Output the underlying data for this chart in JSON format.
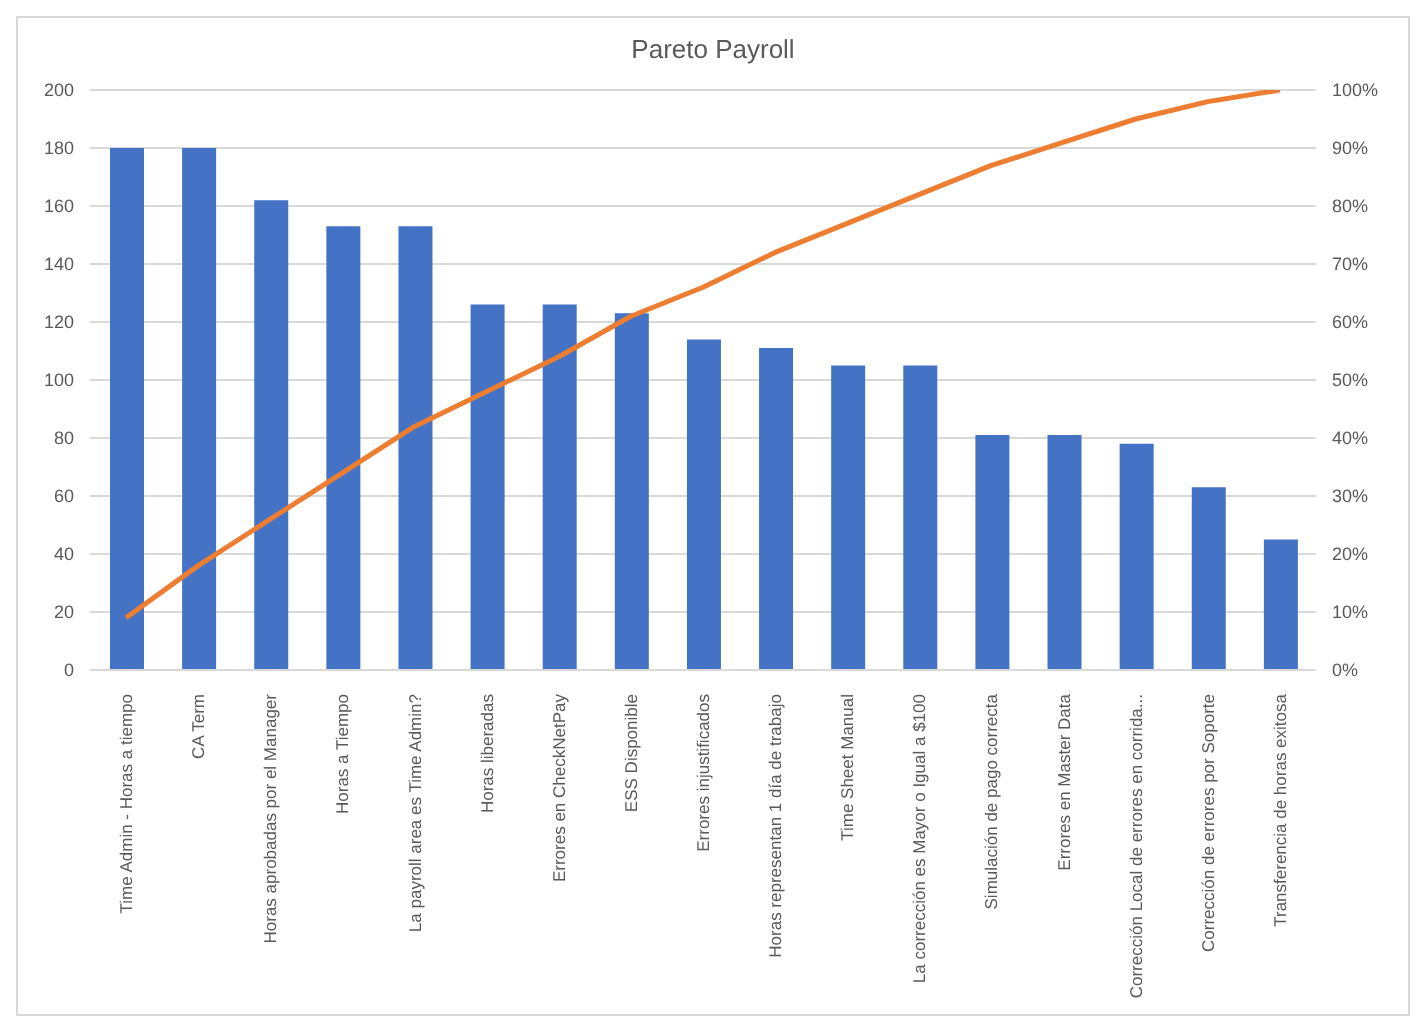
{
  "chart_data": {
    "type": "bar",
    "title": "Pareto Payroll",
    "categories": [
      "Time Admin - Horas a tiempo",
      "CA Term",
      "Horas aprobadas por el Manager",
      "Horas a Tiempo",
      "La payroll area es Time Admin?",
      "Horas liberadas",
      "Errores en CheckNetPay",
      "ESS Disponible",
      "Errores injustificados",
      "Horas representan 1 día de trabajo",
      "Time Sheet Manual",
      "La corrección es Mayor o Igual a $100",
      "Simulación de pago correcta",
      "Errores en Master Data",
      "Corrección Local de errores en corrida...",
      "Corrección de errores por Soporte",
      "Transferencia de horas exitosa"
    ],
    "series": [
      {
        "color": "#4472c4",
        "values": [
          180,
          180,
          162,
          153,
          153,
          126,
          126,
          123,
          114,
          111,
          105,
          105,
          81,
          81,
          78,
          63,
          45
        ]
      },
      {
        "type": "line",
        "axis": "y2",
        "color": "#ed7d31",
        "values": [
          9,
          18,
          26,
          34,
          42,
          48,
          54,
          61,
          66,
          72,
          77,
          82,
          87,
          91,
          95,
          98,
          100
        ]
      }
    ],
    "ylim": [
      0,
      200
    ],
    "yticks": [
      0,
      20,
      40,
      60,
      80,
      100,
      120,
      140,
      160,
      180,
      200
    ],
    "y2lim": [
      0,
      100
    ],
    "y2ticks": [
      {
        "value": 0,
        "label": "0%"
      },
      {
        "value": 10,
        "label": "10%"
      },
      {
        "value": 20,
        "label": "20%"
      },
      {
        "value": 30,
        "label": "30%"
      },
      {
        "value": 40,
        "label": "40%"
      },
      {
        "value": 50,
        "label": "50%"
      },
      {
        "value": 60,
        "label": "60%"
      },
      {
        "value": 70,
        "label": "70%"
      },
      {
        "value": 80,
        "label": "80%"
      },
      {
        "value": 90,
        "label": "90%"
      },
      {
        "value": 100,
        "label": "100%"
      }
    ],
    "grid": "y",
    "marker": "none",
    "line_style": "solid"
  }
}
